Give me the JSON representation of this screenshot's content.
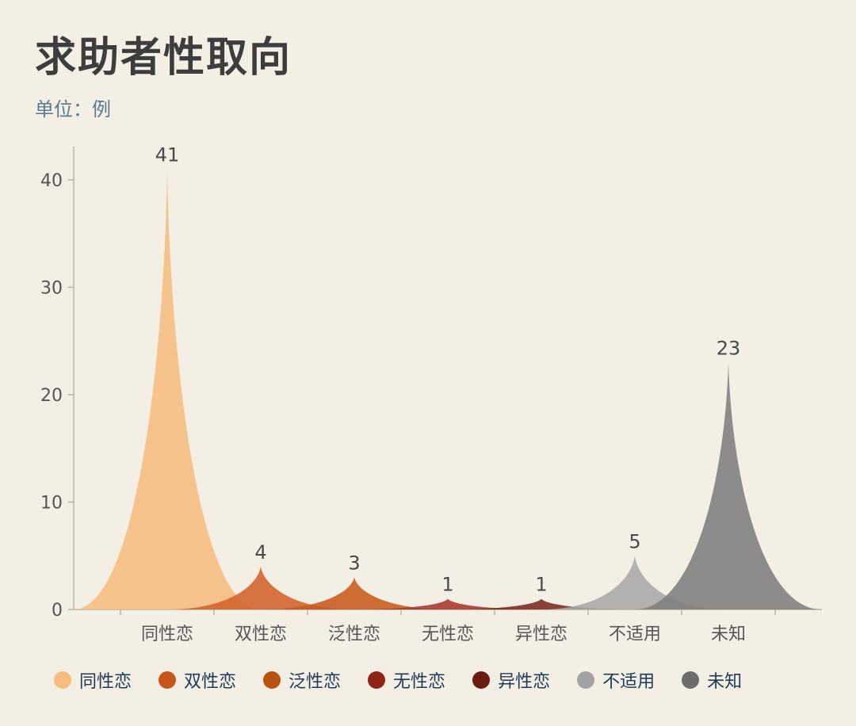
{
  "header": {
    "title": "求助者性取向",
    "subtitle": "单位：例"
  },
  "chart_data": {
    "type": "area",
    "style": "pictorial-peak",
    "categories": [
      "同性恋",
      "双性恋",
      "泛性恋",
      "无性恋",
      "异性恋",
      "不适用",
      "未知"
    ],
    "values": [
      41,
      4,
      3,
      1,
      1,
      5,
      23
    ],
    "colors": [
      "#f6bd7f",
      "#d2622a",
      "#c85a1c",
      "#a8382a",
      "#7a2a1f",
      "#a9a9a9",
      "#7e7e7e"
    ],
    "legend_colors": [
      "#f6bd7f",
      "#c8561c",
      "#b8520f",
      "#8e2416",
      "#6a1c10",
      "#a2a2a2",
      "#6d6d6d"
    ],
    "yticks": [
      0,
      10,
      20,
      30,
      40
    ],
    "ylim": [
      0,
      43
    ],
    "grid": false,
    "legend": "bottom"
  }
}
